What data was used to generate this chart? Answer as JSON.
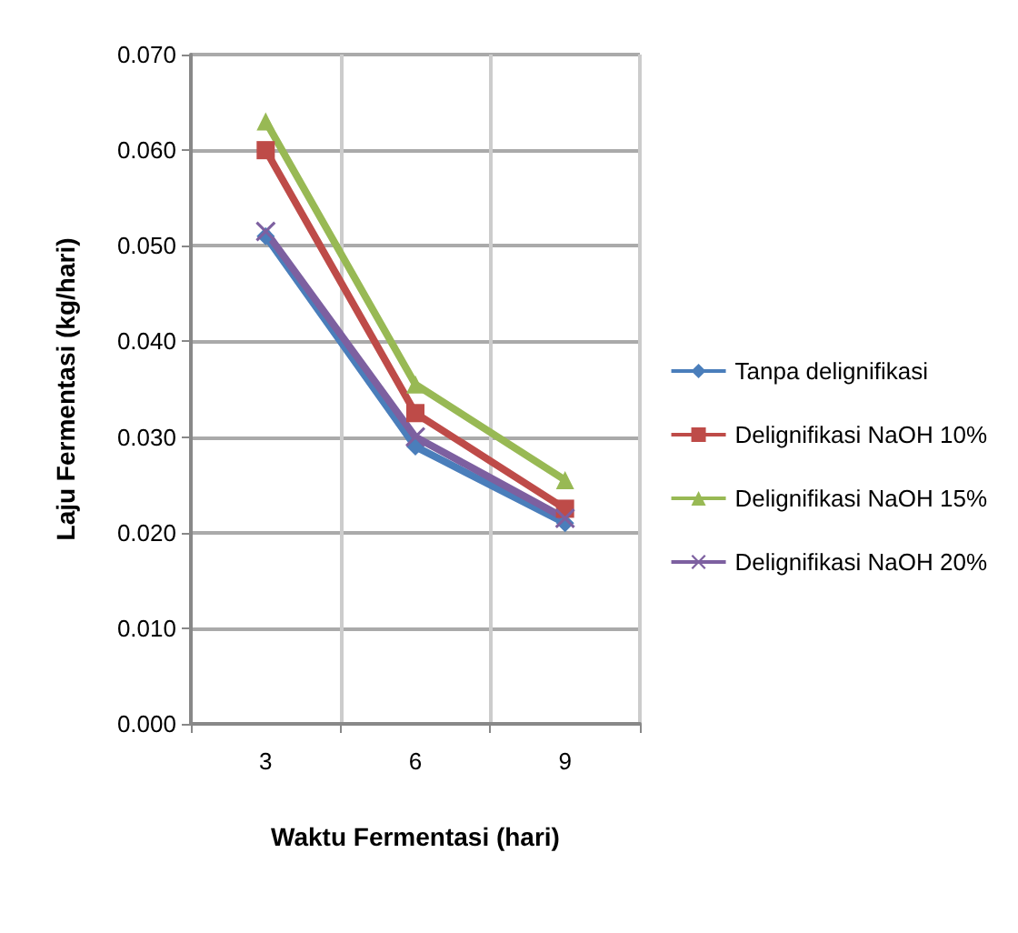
{
  "chart_data": {
    "type": "line",
    "xlabel": "Waktu Fermentasi (hari)",
    "ylabel": "Laju Fermentasi (kg/hari)",
    "categories": [
      "3",
      "6",
      "9"
    ],
    "ylim": [
      0,
      0.07
    ],
    "yticks": [
      {
        "value": 0,
        "label": "0.000"
      },
      {
        "value": 0.01,
        "label": "0.010"
      },
      {
        "value": 0.02,
        "label": "0.020"
      },
      {
        "value": 0.03,
        "label": "0.030"
      },
      {
        "value": 0.04,
        "label": "0.040"
      },
      {
        "value": 0.05,
        "label": "0.050"
      },
      {
        "value": 0.06,
        "label": "0.060"
      },
      {
        "value": 0.07,
        "label": "0.070"
      }
    ],
    "grid": true,
    "legend": "right",
    "line_style": "solid",
    "series": [
      {
        "name": "Tanpa delignifikasi",
        "color": "#4a7ebb",
        "marker": "diamond",
        "values": [
          0.051,
          0.029,
          0.021
        ]
      },
      {
        "name": "Delignifikasi NaOH 10%",
        "color": "#be4b48",
        "marker": "square",
        "values": [
          0.06,
          0.0325,
          0.0225
        ]
      },
      {
        "name": "Delignifikasi NaOH 15%",
        "color": "#98b954",
        "marker": "triangle",
        "values": [
          0.063,
          0.0355,
          0.0255
        ]
      },
      {
        "name": "Delignifikasi NaOH 20%",
        "color": "#7d60a0",
        "marker": "cross",
        "values": [
          0.0515,
          0.03,
          0.0215
        ]
      }
    ]
  }
}
